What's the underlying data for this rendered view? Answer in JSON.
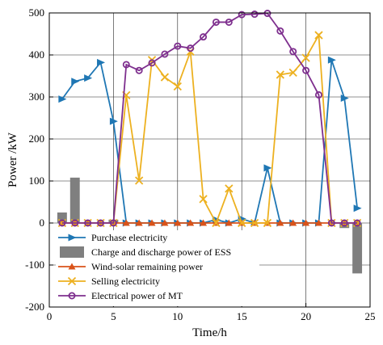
{
  "chart_data": {
    "type": "line",
    "xlabel": "Time/h",
    "ylabel": "Power /kW",
    "xlim": [
      0,
      25
    ],
    "ylim": [
      -200,
      500
    ],
    "xticks": [
      0,
      5,
      10,
      15,
      20,
      25
    ],
    "yticks": [
      -200,
      -100,
      0,
      100,
      200,
      300,
      400,
      500
    ],
    "grid": true,
    "legend_position": "bottom-left",
    "x": [
      1,
      2,
      3,
      4,
      5,
      6,
      7,
      8,
      9,
      10,
      11,
      12,
      13,
      14,
      15,
      16,
      17,
      18,
      19,
      20,
      21,
      22,
      23,
      24
    ],
    "series": [
      {
        "name": "Purchase electricity",
        "type": "line",
        "marker": "triangle-right",
        "color": "#1f77b4",
        "values": [
          295,
          337,
          345,
          382,
          242,
          0,
          0,
          0,
          0,
          0,
          0,
          0,
          8,
          0,
          10,
          0,
          131,
          0,
          0,
          0,
          0,
          388,
          297,
          35
        ]
      },
      {
        "name": "Charge and discharge power of ESS",
        "type": "bar",
        "color": "#7f7f7f",
        "values": [
          25,
          108,
          0,
          0,
          8,
          0,
          0,
          0,
          0,
          0,
          0,
          0,
          0,
          0,
          0,
          0,
          0,
          0,
          0,
          0,
          0,
          0,
          -12,
          -120
        ]
      },
      {
        "name": "Wind-solar remaining power",
        "type": "line",
        "marker": "triangle-up",
        "color": "#d95319",
        "values": [
          0,
          0,
          0,
          0,
          0,
          0,
          0,
          0,
          0,
          0,
          0,
          0,
          0,
          0,
          0,
          0,
          0,
          0,
          0,
          0,
          0,
          0,
          0,
          0
        ]
      },
      {
        "name": "Selling electricity",
        "type": "line",
        "marker": "x",
        "color": "#edb120",
        "values": [
          0,
          0,
          0,
          0,
          0,
          304,
          101,
          388,
          347,
          325,
          408,
          57,
          0,
          82,
          0,
          0,
          0,
          353,
          358,
          393,
          447,
          0,
          0,
          0
        ]
      },
      {
        "name": "Electrical power of MT",
        "type": "line",
        "marker": "circle",
        "color": "#7e2f8e",
        "values": [
          0,
          0,
          0,
          0,
          0,
          377,
          363,
          381,
          402,
          421,
          416,
          443,
          478,
          478,
          496,
          497,
          499,
          457,
          408,
          363,
          305,
          0,
          0,
          0
        ]
      }
    ]
  }
}
